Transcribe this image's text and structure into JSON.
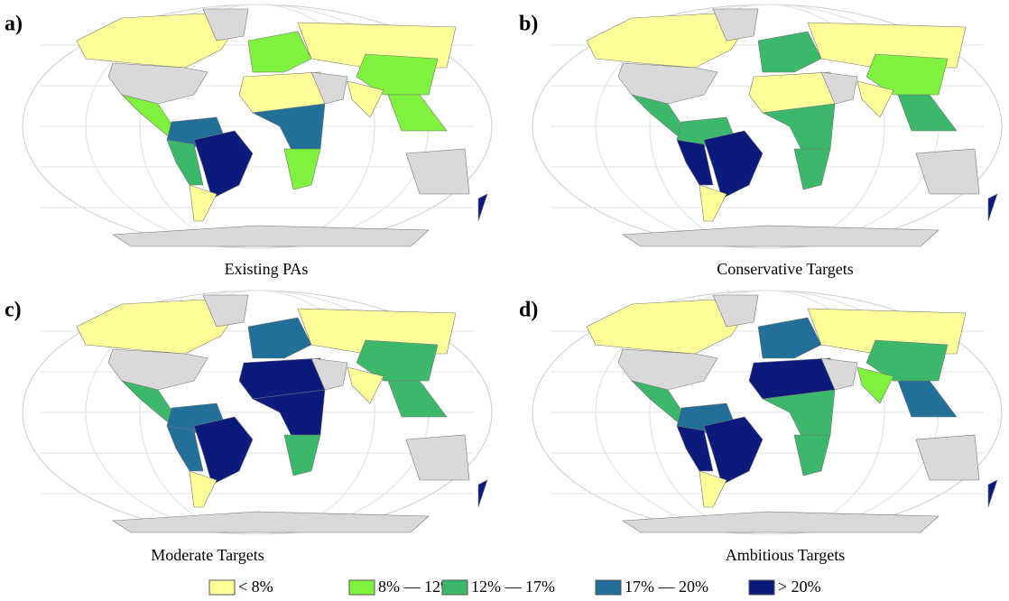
{
  "panels": [
    {
      "label": "a)",
      "caption": "Existing PAs"
    },
    {
      "label": "b)",
      "caption": "Conservative Targets"
    },
    {
      "label": "c)",
      "caption": "Moderate Targets"
    },
    {
      "label": "d)",
      "caption": "Ambitious Targets"
    }
  ],
  "legend": [
    {
      "label": "< 8%",
      "color": "#ffff99"
    },
    {
      "label": "8% — 12%",
      "color": "#7ef23c"
    },
    {
      "label": "12% — 17%",
      "color": "#3cb86a"
    },
    {
      "label": "17% — 20%",
      "color": "#22709a"
    },
    {
      "label": "> 20%",
      "color": "#0c1a7c"
    }
  ]
}
